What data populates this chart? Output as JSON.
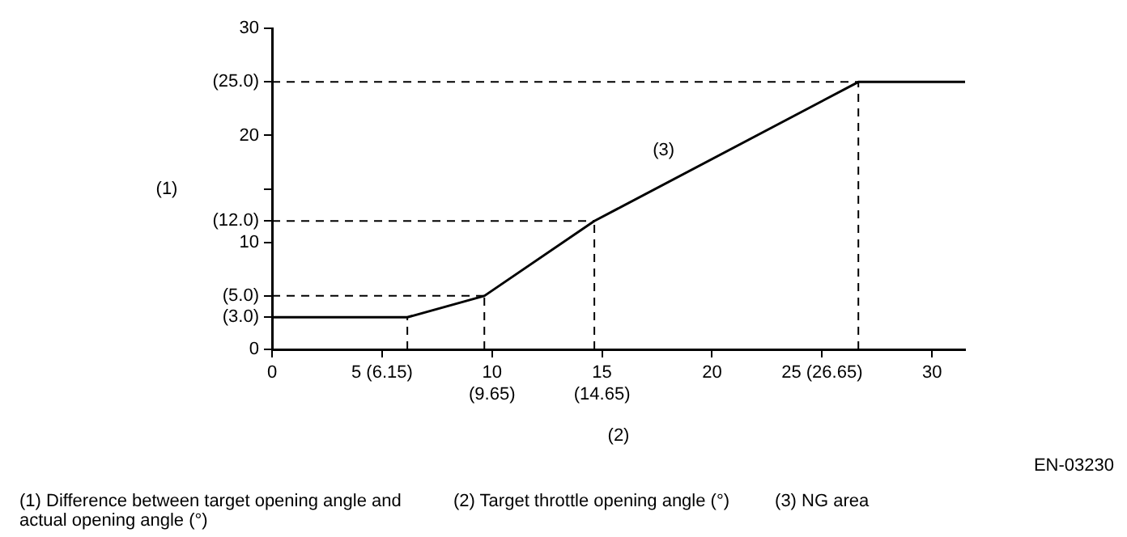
{
  "chart_data": {
    "type": "line",
    "xlabel": "(2)",
    "ylabel": "(1)",
    "x": [
      0,
      6.15,
      9.65,
      14.65,
      26.65,
      31.5
    ],
    "values": [
      3,
      3,
      5,
      12,
      25,
      25
    ],
    "color": "#000000",
    "marker": "none",
    "line_style": "solid",
    "grid": false,
    "legend": false,
    "xlim": [
      0,
      31.5
    ],
    "ylim": [
      0,
      30
    ],
    "xticks": [
      0,
      {
        "value": 5,
        "label": "5 (6.15)"
      },
      {
        "value": 10,
        "label": "10\n(9.65)"
      },
      {
        "value": 15,
        "label": "15\n(14.65)"
      },
      20,
      {
        "value": 25,
        "label": "25 (26.65)"
      },
      30
    ],
    "yticks": [
      0,
      {
        "value": 3,
        "label": "(3.0)"
      },
      {
        "value": 5,
        "label": "(5.0)"
      },
      10,
      {
        "value": 12,
        "label": "(12.0)"
      },
      {
        "value": 15,
        "label": null
      },
      20,
      {
        "value": 25,
        "label": "(25.0)"
      },
      30
    ],
    "ref_lines": [
      {
        "axis": "y",
        "value": 25,
        "line_style": "dashed"
      },
      {
        "axis": "y",
        "value": 12,
        "line_style": "dashed"
      },
      {
        "axis": "y",
        "value": 5,
        "line_style": "dashed"
      },
      {
        "axis": "x",
        "value": 6.15,
        "line_style": "dashed"
      },
      {
        "axis": "x",
        "value": 9.65,
        "line_style": "dashed"
      },
      {
        "axis": "x",
        "value": 14.65,
        "line_style": "dashed"
      },
      {
        "axis": "x",
        "value": 26.65,
        "line_style": "dashed"
      }
    ],
    "annotations": [
      "(3)",
      "EN-03230",
      "(1) Difference between target opening angle and actual opening angle (°)",
      "(2) Target throttle opening angle (°)",
      "(3) NG area"
    ]
  }
}
